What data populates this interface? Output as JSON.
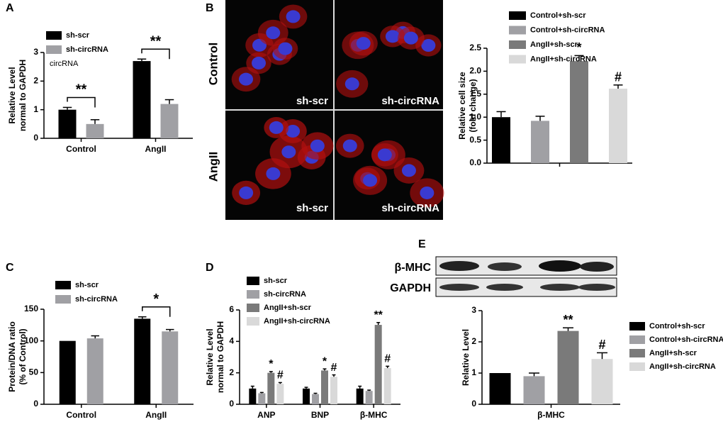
{
  "chart_data": [
    {
      "type": "bar",
      "panel": "A",
      "categories": [
        "Control",
        "AngII"
      ],
      "ylabel": [
        "Relative Level",
        "normal to GAPDH"
      ],
      "note": "circRNA",
      "ylim": [
        0,
        3
      ],
      "yticks": [
        0,
        1,
        2,
        3
      ],
      "series": [
        {
          "name": "sh-scr",
          "color": "#000000",
          "values": [
            1.0,
            2.7
          ],
          "errors": [
            0.08,
            0.07
          ]
        },
        {
          "name": "sh-circRNA",
          "color": "#a0a0a4",
          "values": [
            0.5,
            1.2
          ],
          "errors": [
            0.15,
            0.15
          ]
        }
      ],
      "brackets": [
        {
          "category": 0,
          "label": "**"
        },
        {
          "category": 1,
          "label": "**"
        }
      ]
    },
    {
      "type": "bar",
      "panel": "B",
      "ylabel": [
        "Relative cell size",
        "(fold change)"
      ],
      "ylim": [
        0,
        2.5
      ],
      "yticks": [
        {
          "value": 0,
          "label": "0.0"
        },
        0.5,
        {
          "value": 1,
          "label": "1.0"
        },
        1.5,
        {
          "value": 2,
          "label": "2.0"
        },
        2.5
      ],
      "series": [
        {
          "name": "Control+sh-scr",
          "color": "#000000",
          "values": [
            1.0
          ],
          "errors": [
            0.12
          ]
        },
        {
          "name": "Control+sh-circRNA",
          "color": "#a0a0a4",
          "values": [
            0.92
          ],
          "errors": [
            0.1
          ]
        },
        {
          "name": "AngII+sh-scr",
          "color": "#7a7a7a",
          "values": [
            2.22
          ],
          "errors": [
            0.12
          ],
          "annotations": [
            "*"
          ]
        },
        {
          "name": "AngII+sh-circRNA",
          "color": "#d9d9d9",
          "values": [
            1.62
          ],
          "errors": [
            0.08
          ],
          "annotations": [
            "#"
          ]
        }
      ]
    },
    {
      "type": "bar",
      "panel": "C",
      "categories": [
        "Control",
        "AngII"
      ],
      "ylabel": [
        "Protein/DNA ratio",
        "(% of Control)"
      ],
      "ylim": [
        0,
        150
      ],
      "yticks": [
        0,
        50,
        100,
        150
      ],
      "series": [
        {
          "name": "sh-scr",
          "color": "#000000",
          "values": [
            100,
            135
          ],
          "errors": [
            null,
            3
          ]
        },
        {
          "name": "sh-circRNA",
          "color": "#a0a0a4",
          "values": [
            104,
            115
          ],
          "errors": [
            4,
            3
          ]
        }
      ],
      "brackets": [
        {
          "category": 1,
          "label": "*"
        }
      ]
    },
    {
      "type": "bar",
      "panel": "D",
      "categories": [
        "ANP",
        "BNP",
        "β-MHC"
      ],
      "ylabel": [
        "Relative Level",
        "normal to GAPDH"
      ],
      "ylim": [
        0,
        6
      ],
      "yticks": [
        0,
        2,
        4,
        6
      ],
      "series": [
        {
          "name": "sh-scr",
          "color": "#000000",
          "values": [
            1.0,
            1.0,
            1.0
          ],
          "errors": [
            0.15,
            0.08,
            0.15
          ]
        },
        {
          "name": "sh-circRNA",
          "color": "#a0a0a4",
          "values": [
            0.7,
            0.65,
            0.85
          ],
          "errors": [
            0.05,
            0.05,
            0.05
          ]
        },
        {
          "name": "AngII+sh-scr",
          "color": "#7a7a7a",
          "values": [
            2.0,
            2.15,
            5.05
          ],
          "errors": [
            0.08,
            0.1,
            0.15
          ],
          "annotations": [
            "*",
            "*",
            "**"
          ]
        },
        {
          "name": "AngII+sh-circRNA",
          "color": "#d9d9d9",
          "values": [
            1.3,
            1.75,
            2.3
          ],
          "errors": [
            0.08,
            0.12,
            0.12
          ],
          "annotations": [
            "#",
            "#",
            "#"
          ]
        }
      ]
    },
    {
      "type": "bar",
      "panel": "E",
      "categories": [
        "β-MHC"
      ],
      "ylabel": [
        "Relative Level"
      ],
      "ylim": [
        0,
        3
      ],
      "yticks": [
        0,
        1,
        2,
        3
      ],
      "series": [
        {
          "name": "Control+sh-scr",
          "color": "#000000",
          "values": [
            1.0
          ],
          "errors": [
            null
          ]
        },
        {
          "name": "Control+sh-circRNA",
          "color": "#a0a0a4",
          "values": [
            0.9
          ],
          "errors": [
            0.1
          ]
        },
        {
          "name": "AngII+sh-scr",
          "color": "#7a7a7a",
          "values": [
            2.35
          ],
          "errors": [
            0.1
          ],
          "annotations": [
            "**"
          ]
        },
        {
          "name": "AngII+sh-circRNA",
          "color": "#d9d9d9",
          "values": [
            1.45
          ],
          "errors": [
            0.2
          ],
          "annotations": [
            "#"
          ]
        }
      ]
    }
  ],
  "micrographs": {
    "rows": [
      "Control",
      "AngII"
    ],
    "columns": [
      "sh-scr",
      "sh-circRNA"
    ]
  },
  "blot": {
    "bands": [
      "β-MHC",
      "GAPDH"
    ]
  }
}
